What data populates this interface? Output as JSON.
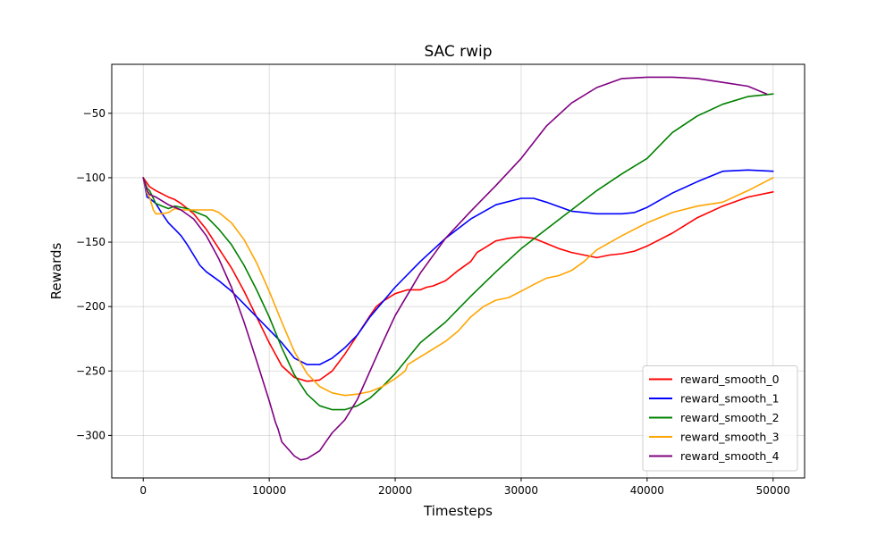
{
  "chart_data": {
    "type": "line",
    "title": "SAC rwip",
    "xlabel": "Timesteps",
    "ylabel": "Rewards",
    "xlim": [
      -2500,
      52500
    ],
    "ylim": [
      -333,
      -12
    ],
    "xticks": [
      0,
      10000,
      20000,
      30000,
      40000,
      50000
    ],
    "yticks": [
      -300,
      -250,
      -200,
      -150,
      -100,
      -50
    ],
    "grid": true,
    "legend_position": "bottom-right",
    "series": [
      {
        "name": "reward_smooth_0",
        "color": "#ff0000",
        "x": [
          0,
          500,
          1000,
          2000,
          2500,
          3000,
          4000,
          5000,
          6000,
          7000,
          8000,
          9000,
          10000,
          11000,
          12000,
          13000,
          14000,
          15000,
          16000,
          17000,
          18000,
          18500,
          19000,
          20000,
          21000,
          22000,
          22500,
          23000,
          24000,
          24500,
          25000,
          26000,
          26500,
          27000,
          28000,
          29000,
          30000,
          31000,
          32000,
          33000,
          34000,
          35000,
          36000,
          37000,
          38000,
          39000,
          40000,
          42000,
          44000,
          46000,
          48000,
          50000
        ],
        "y": [
          -100,
          -107,
          -110,
          -115,
          -117,
          -120,
          -128,
          -140,
          -155,
          -170,
          -188,
          -208,
          -228,
          -246,
          -255,
          -258,
          -257,
          -250,
          -237,
          -222,
          -207,
          -200,
          -196,
          -190,
          -187,
          -187,
          -185,
          -184,
          -180,
          -176,
          -172,
          -165,
          -158,
          -155,
          -149,
          -147,
          -146,
          -147,
          -151,
          -155,
          -158,
          -160,
          -162,
          -160,
          -159,
          -157,
          -153,
          -143,
          -131,
          -122,
          -115,
          -111
        ]
      },
      {
        "name": "reward_smooth_1",
        "color": "#0000ff",
        "x": [
          0,
          300,
          500,
          1000,
          1500,
          2000,
          2500,
          3000,
          3500,
          4000,
          4500,
          5000,
          6000,
          7000,
          8000,
          9000,
          10000,
          11000,
          12000,
          13000,
          14000,
          15000,
          16000,
          17000,
          18000,
          20000,
          22000,
          24000,
          26000,
          28000,
          30000,
          31000,
          32000,
          34000,
          36000,
          38000,
          39000,
          40000,
          42000,
          44000,
          46000,
          48000,
          50000
        ],
        "y": [
          -100,
          -115,
          -116,
          -120,
          -128,
          -135,
          -140,
          -145,
          -152,
          -160,
          -168,
          -173,
          -180,
          -188,
          -198,
          -208,
          -218,
          -228,
          -240,
          -245,
          -245,
          -240,
          -232,
          -222,
          -208,
          -185,
          -165,
          -147,
          -132,
          -121,
          -116,
          -116,
          -119,
          -126,
          -128,
          -128,
          -127,
          -123,
          -112,
          -103,
          -95,
          -94,
          -95
        ]
      },
      {
        "name": "reward_smooth_2",
        "color": "#008000",
        "x": [
          0,
          300,
          500,
          1000,
          1500,
          2000,
          2500,
          3000,
          3500,
          4000,
          5000,
          6000,
          7000,
          8000,
          9000,
          10000,
          11000,
          12000,
          13000,
          14000,
          15000,
          16000,
          17000,
          18000,
          19000,
          20000,
          22000,
          24000,
          26000,
          28000,
          30000,
          32000,
          34000,
          36000,
          38000,
          40000,
          42000,
          44000,
          46000,
          48000,
          50000
        ],
        "y": [
          -100,
          -108,
          -110,
          -120,
          -122,
          -124,
          -122,
          -123,
          -124,
          -126,
          -130,
          -140,
          -152,
          -168,
          -187,
          -208,
          -232,
          -253,
          -268,
          -277,
          -280,
          -280,
          -277,
          -271,
          -262,
          -252,
          -228,
          -212,
          -192,
          -173,
          -155,
          -140,
          -125,
          -110,
          -97,
          -85,
          -65,
          -52,
          -43,
          -37,
          -35
        ]
      },
      {
        "name": "reward_smooth_3",
        "color": "#ffa500",
        "x": [
          0,
          300,
          500,
          800,
          1000,
          1500,
          2000,
          2500,
          3000,
          4000,
          5000,
          5500,
          6000,
          7000,
          8000,
          9000,
          10000,
          11000,
          12000,
          13000,
          14000,
          15000,
          16000,
          17000,
          18000,
          19000,
          20000,
          20800,
          21000,
          22000,
          23000,
          24000,
          25000,
          26000,
          27000,
          28000,
          29000,
          30000,
          31000,
          32000,
          33000,
          34000,
          35000,
          36000,
          38000,
          40000,
          42000,
          44000,
          46000,
          48000,
          50000
        ],
        "y": [
          -100,
          -112,
          -115,
          -125,
          -128,
          -128,
          -127,
          -124,
          -125,
          -125,
          -125,
          -125,
          -127,
          -135,
          -148,
          -166,
          -188,
          -212,
          -235,
          -252,
          -262,
          -267,
          -269,
          -268,
          -266,
          -262,
          -256,
          -250,
          -245,
          -239,
          -233,
          -227,
          -219,
          -208,
          -200,
          -195,
          -193,
          -188,
          -183,
          -178,
          -176,
          -172,
          -165,
          -156,
          -145,
          -135,
          -127,
          -122,
          -119,
          -110,
          -100
        ]
      },
      {
        "name": "reward_smooth_4",
        "color": "#800080",
        "x": [
          0,
          300,
          500,
          1000,
          1500,
          2000,
          3000,
          4000,
          5000,
          6000,
          7000,
          8000,
          9000,
          10000,
          10500,
          10700,
          11000,
          12000,
          12500,
          13000,
          14000,
          14500,
          15000,
          16000,
          17000,
          18000,
          19000,
          20000,
          22000,
          24000,
          26000,
          28000,
          30000,
          32000,
          34000,
          36000,
          38000,
          40000,
          42000,
          44000,
          46000,
          48000,
          49500
        ],
        "y": [
          -100,
          -110,
          -113,
          -115,
          -118,
          -121,
          -125,
          -132,
          -145,
          -163,
          -185,
          -212,
          -242,
          -273,
          -290,
          -295,
          -305,
          -316,
          -319,
          -318,
          -312,
          -305,
          -298,
          -288,
          -272,
          -250,
          -228,
          -207,
          -174,
          -147,
          -126,
          -106,
          -85,
          -60,
          -42,
          -30,
          -23,
          -22,
          -22,
          -23,
          -26,
          -29,
          -35
        ]
      }
    ]
  }
}
